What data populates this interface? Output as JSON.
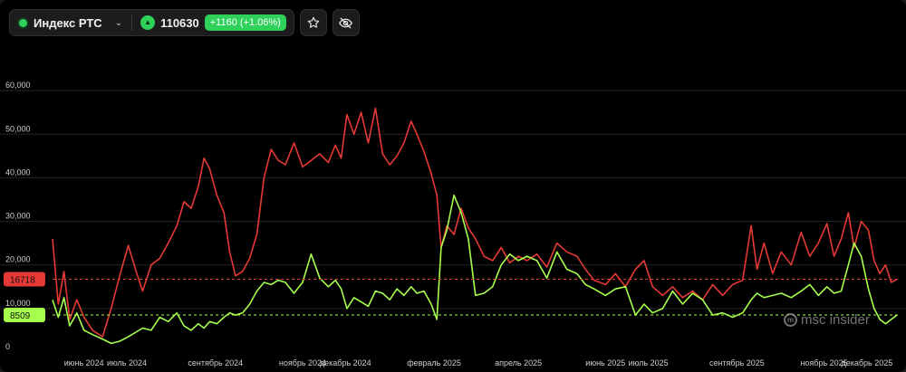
{
  "toolbar": {
    "symbol": "Индекс РТС",
    "price": "110630",
    "change": "+1160 (+1.06%)",
    "icons": [
      "status-dot-icon",
      "chevron-down-icon",
      "triangle-up-icon",
      "star-icon",
      "eye-off-icon"
    ]
  },
  "watermark": {
    "text": "msc insider"
  },
  "colors": {
    "background": "#000000",
    "red_series": "#e53935",
    "green_series": "#a6ff4d",
    "badge_green": "#2fd15b"
  },
  "chart_data": {
    "type": "line",
    "title": "",
    "xlabel": "",
    "ylabel": "",
    "ylim": [
      0,
      70000
    ],
    "y_ticks": [
      0,
      10000,
      20000,
      30000,
      40000,
      50000,
      60000
    ],
    "y_tick_labels": [
      "0",
      "10,000",
      "20,000",
      "30,000",
      "40,000",
      "50,000",
      "60,000"
    ],
    "x_ticks": [
      "2024-06-01",
      "2024-07-01",
      "2024-09-01",
      "2024-11-01",
      "2024-12-01",
      "2025-02-01",
      "2025-04-01",
      "2025-06-01",
      "2025-07-01",
      "2025-09-01",
      "2025-11-01",
      "2025-12-01"
    ],
    "x_tick_labels": [
      "июнь 2024",
      "июль 2024",
      "сентябрь 2024",
      "ноябрь 2024",
      "декабрь 2024",
      "февраль 2025",
      "апрель 2025",
      "июнь 2025",
      "июль 2025",
      "сентябрь 2025",
      "ноябрь 2025",
      "декабрь 2025"
    ],
    "x_range": [
      "2024-05-10",
      "2025-12-22"
    ],
    "grid": true,
    "legend": "none",
    "current_markers": [
      {
        "series": "red",
        "value": 16718,
        "label": "16718"
      },
      {
        "series": "green",
        "value": 8509,
        "label": "8509"
      }
    ],
    "series": [
      {
        "color": "#e53935",
        "points": [
          [
            "2024-05-10",
            26000
          ],
          [
            "2024-05-14",
            11000
          ],
          [
            "2024-05-18",
            18500
          ],
          [
            "2024-05-22",
            7500
          ],
          [
            "2024-05-27",
            12000
          ],
          [
            "2024-06-01",
            8000
          ],
          [
            "2024-06-07",
            5000
          ],
          [
            "2024-06-14",
            3500
          ],
          [
            "2024-06-20",
            10000
          ],
          [
            "2024-06-26",
            17500
          ],
          [
            "2024-07-02",
            24500
          ],
          [
            "2024-07-07",
            19000
          ],
          [
            "2024-07-12",
            14000
          ],
          [
            "2024-07-18",
            20000
          ],
          [
            "2024-07-24",
            21500
          ],
          [
            "2024-07-30",
            25000
          ],
          [
            "2024-08-05",
            29000
          ],
          [
            "2024-08-10",
            34500
          ],
          [
            "2024-08-15",
            33000
          ],
          [
            "2024-08-20",
            38000
          ],
          [
            "2024-08-24",
            44500
          ],
          [
            "2024-08-28",
            42000
          ],
          [
            "2024-09-02",
            36000
          ],
          [
            "2024-09-07",
            32000
          ],
          [
            "2024-09-11",
            23000
          ],
          [
            "2024-09-15",
            17500
          ],
          [
            "2024-09-20",
            18500
          ],
          [
            "2024-09-25",
            21500
          ],
          [
            "2024-09-30",
            27000
          ],
          [
            "2024-10-05",
            40000
          ],
          [
            "2024-10-10",
            46500
          ],
          [
            "2024-10-15",
            44000
          ],
          [
            "2024-10-20",
            43000
          ],
          [
            "2024-10-26",
            48000
          ],
          [
            "2024-11-01",
            42500
          ],
          [
            "2024-11-07",
            44000
          ],
          [
            "2024-11-13",
            45500
          ],
          [
            "2024-11-19",
            43500
          ],
          [
            "2024-11-24",
            47500
          ],
          [
            "2024-11-28",
            44500
          ],
          [
            "2024-12-02",
            54500
          ],
          [
            "2024-12-07",
            50000
          ],
          [
            "2024-12-12",
            55000
          ],
          [
            "2024-12-17",
            48000
          ],
          [
            "2024-12-22",
            56000
          ],
          [
            "2024-12-27",
            45500
          ],
          [
            "2025-01-01",
            43000
          ],
          [
            "2025-01-06",
            45000
          ],
          [
            "2025-01-11",
            48000
          ],
          [
            "2025-01-16",
            53000
          ],
          [
            "2025-01-20",
            50000
          ],
          [
            "2025-01-25",
            46000
          ],
          [
            "2025-01-30",
            41000
          ],
          [
            "2025-02-03",
            36000
          ],
          [
            "2025-02-06",
            24000
          ],
          [
            "2025-02-10",
            29000
          ],
          [
            "2025-02-15",
            27000
          ],
          [
            "2025-02-20",
            33000
          ],
          [
            "2025-02-25",
            28500
          ],
          [
            "2025-03-02",
            26000
          ],
          [
            "2025-03-08",
            22000
          ],
          [
            "2025-03-14",
            21000
          ],
          [
            "2025-03-20",
            24000
          ],
          [
            "2025-03-26",
            20500
          ],
          [
            "2025-04-01",
            22000
          ],
          [
            "2025-04-07",
            21000
          ],
          [
            "2025-04-14",
            22500
          ],
          [
            "2025-04-21",
            19500
          ],
          [
            "2025-04-28",
            25000
          ],
          [
            "2025-05-05",
            23000
          ],
          [
            "2025-05-12",
            22000
          ],
          [
            "2025-05-18",
            19000
          ],
          [
            "2025-05-24",
            16500
          ],
          [
            "2025-06-01",
            15500
          ],
          [
            "2025-06-08",
            18000
          ],
          [
            "2025-06-15",
            15000
          ],
          [
            "2025-06-22",
            19000
          ],
          [
            "2025-06-28",
            21000
          ],
          [
            "2025-07-04",
            15000
          ],
          [
            "2025-07-11",
            13000
          ],
          [
            "2025-07-18",
            15000
          ],
          [
            "2025-07-25",
            12500
          ],
          [
            "2025-08-01",
            14000
          ],
          [
            "2025-08-08",
            12000
          ],
          [
            "2025-08-15",
            15500
          ],
          [
            "2025-08-22",
            13000
          ],
          [
            "2025-08-29",
            15500
          ],
          [
            "2025-09-05",
            16500
          ],
          [
            "2025-09-11",
            29000
          ],
          [
            "2025-09-15",
            19000
          ],
          [
            "2025-09-20",
            25000
          ],
          [
            "2025-09-26",
            18000
          ],
          [
            "2025-10-02",
            23000
          ],
          [
            "2025-10-09",
            20000
          ],
          [
            "2025-10-16",
            27500
          ],
          [
            "2025-10-22",
            22000
          ],
          [
            "2025-10-28",
            25000
          ],
          [
            "2025-11-03",
            29500
          ],
          [
            "2025-11-08",
            22000
          ],
          [
            "2025-11-13",
            26000
          ],
          [
            "2025-11-18",
            32000
          ],
          [
            "2025-11-22",
            24000
          ],
          [
            "2025-11-27",
            30000
          ],
          [
            "2025-12-02",
            28000
          ],
          [
            "2025-12-06",
            21000
          ],
          [
            "2025-12-10",
            18000
          ],
          [
            "2025-12-14",
            20000
          ],
          [
            "2025-12-18",
            16000
          ],
          [
            "2025-12-22",
            16718
          ]
        ]
      },
      {
        "color": "#a6ff4d",
        "points": [
          [
            "2024-05-10",
            12000
          ],
          [
            "2024-05-14",
            8000
          ],
          [
            "2024-05-18",
            12500
          ],
          [
            "2024-05-22",
            6000
          ],
          [
            "2024-05-27",
            9000
          ],
          [
            "2024-06-01",
            5000
          ],
          [
            "2024-06-07",
            4000
          ],
          [
            "2024-06-14",
            3000
          ],
          [
            "2024-06-20",
            2000
          ],
          [
            "2024-06-26",
            2500
          ],
          [
            "2024-07-02",
            3500
          ],
          [
            "2024-07-07",
            4500
          ],
          [
            "2024-07-12",
            5500
          ],
          [
            "2024-07-18",
            5000
          ],
          [
            "2024-07-24",
            8000
          ],
          [
            "2024-07-30",
            7000
          ],
          [
            "2024-08-05",
            9000
          ],
          [
            "2024-08-10",
            6000
          ],
          [
            "2024-08-15",
            5000
          ],
          [
            "2024-08-20",
            6500
          ],
          [
            "2024-08-24",
            5500
          ],
          [
            "2024-08-28",
            7000
          ],
          [
            "2024-09-02",
            6500
          ],
          [
            "2024-09-07",
            8000
          ],
          [
            "2024-09-11",
            9000
          ],
          [
            "2024-09-15",
            8500
          ],
          [
            "2024-09-20",
            9000
          ],
          [
            "2024-09-25",
            11000
          ],
          [
            "2024-09-30",
            14000
          ],
          [
            "2024-10-05",
            16000
          ],
          [
            "2024-10-10",
            15500
          ],
          [
            "2024-10-15",
            16500
          ],
          [
            "2024-10-20",
            16000
          ],
          [
            "2024-10-26",
            13500
          ],
          [
            "2024-11-01",
            16000
          ],
          [
            "2024-11-07",
            22500
          ],
          [
            "2024-11-13",
            17000
          ],
          [
            "2024-11-19",
            15000
          ],
          [
            "2024-11-24",
            16500
          ],
          [
            "2024-11-28",
            14500
          ],
          [
            "2024-12-02",
            10000
          ],
          [
            "2024-12-07",
            12500
          ],
          [
            "2024-12-12",
            11500
          ],
          [
            "2024-12-17",
            10500
          ],
          [
            "2024-12-22",
            14000
          ],
          [
            "2024-12-27",
            13500
          ],
          [
            "2025-01-01",
            12000
          ],
          [
            "2025-01-06",
            14500
          ],
          [
            "2025-01-11",
            13000
          ],
          [
            "2025-01-16",
            15000
          ],
          [
            "2025-01-20",
            13500
          ],
          [
            "2025-01-25",
            14000
          ],
          [
            "2025-01-30",
            11000
          ],
          [
            "2025-02-03",
            7500
          ],
          [
            "2025-02-06",
            24000
          ],
          [
            "2025-02-10",
            28000
          ],
          [
            "2025-02-15",
            36000
          ],
          [
            "2025-02-20",
            32000
          ],
          [
            "2025-02-25",
            26000
          ],
          [
            "2025-03-02",
            13000
          ],
          [
            "2025-03-08",
            13500
          ],
          [
            "2025-03-14",
            15000
          ],
          [
            "2025-03-20",
            20000
          ],
          [
            "2025-03-26",
            22500
          ],
          [
            "2025-04-01",
            21000
          ],
          [
            "2025-04-07",
            22000
          ],
          [
            "2025-04-14",
            21000
          ],
          [
            "2025-04-21",
            17000
          ],
          [
            "2025-04-28",
            23000
          ],
          [
            "2025-05-05",
            19000
          ],
          [
            "2025-05-12",
            18000
          ],
          [
            "2025-05-18",
            15500
          ],
          [
            "2025-05-24",
            14500
          ],
          [
            "2025-06-01",
            13000
          ],
          [
            "2025-06-08",
            14500
          ],
          [
            "2025-06-15",
            15000
          ],
          [
            "2025-06-22",
            8500
          ],
          [
            "2025-06-28",
            11000
          ],
          [
            "2025-07-04",
            9000
          ],
          [
            "2025-07-11",
            10000
          ],
          [
            "2025-07-18",
            14000
          ],
          [
            "2025-07-25",
            11000
          ],
          [
            "2025-08-01",
            13500
          ],
          [
            "2025-08-08",
            12000
          ],
          [
            "2025-08-15",
            8500
          ],
          [
            "2025-08-22",
            9000
          ],
          [
            "2025-08-29",
            8000
          ],
          [
            "2025-09-05",
            9000
          ],
          [
            "2025-09-11",
            12000
          ],
          [
            "2025-09-15",
            13500
          ],
          [
            "2025-09-20",
            12500
          ],
          [
            "2025-09-26",
            13000
          ],
          [
            "2025-10-02",
            13500
          ],
          [
            "2025-10-09",
            12500
          ],
          [
            "2025-10-16",
            14000
          ],
          [
            "2025-10-22",
            15500
          ],
          [
            "2025-10-28",
            13000
          ],
          [
            "2025-11-03",
            15000
          ],
          [
            "2025-11-08",
            13500
          ],
          [
            "2025-11-13",
            14000
          ],
          [
            "2025-11-18",
            20000
          ],
          [
            "2025-11-22",
            25000
          ],
          [
            "2025-11-27",
            22000
          ],
          [
            "2025-12-02",
            14500
          ],
          [
            "2025-12-06",
            10000
          ],
          [
            "2025-12-10",
            7500
          ],
          [
            "2025-12-14",
            6500
          ],
          [
            "2025-12-18",
            7500
          ],
          [
            "2025-12-22",
            8509
          ]
        ]
      }
    ]
  }
}
